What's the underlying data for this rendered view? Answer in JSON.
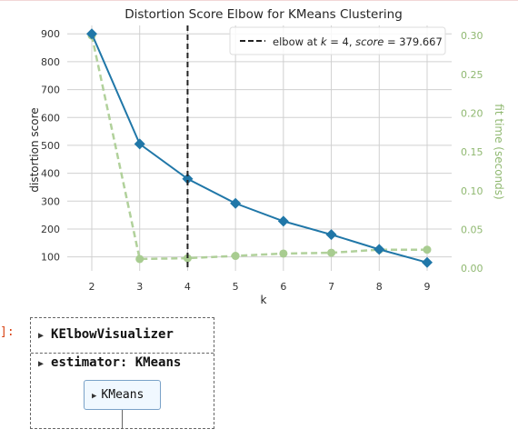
{
  "chart_data": {
    "type": "line",
    "title": "Distortion Score Elbow for KMeans Clustering",
    "xlabel": "k",
    "ylabel": "distortion score",
    "y2label": "fit time (seconds)",
    "x": [
      2,
      3,
      4,
      5,
      6,
      7,
      8,
      9
    ],
    "xticks": [
      "2",
      "3",
      "4",
      "5",
      "6",
      "7",
      "8",
      "9"
    ],
    "ylim": [
      50,
      930
    ],
    "yticks": [
      "100",
      "200",
      "300",
      "400",
      "500",
      "600",
      "700",
      "800",
      "900"
    ],
    "y2lim": [
      -0.0033,
      0.313
    ],
    "y2ticks": [
      "0.00",
      "0.05",
      "0.10",
      "0.15",
      "0.20",
      "0.25",
      "0.30"
    ],
    "grid": true,
    "series": [
      {
        "axis": "left",
        "values": [
          900,
          505,
          380,
          292,
          228,
          180,
          127,
          80
        ],
        "color": "#2077a8",
        "marker": "diamond"
      },
      {
        "axis": "right",
        "values": [
          0.3,
          0.012,
          0.013,
          0.016,
          0.019,
          0.02,
          0.024,
          0.024
        ],
        "color": "#a8cc90",
        "marker": "circle",
        "dashed": true
      }
    ],
    "elbow": {
      "k": 4,
      "label_pre": "elbow at ",
      "label_k": "k",
      "label_mid": " = 4, ",
      "label_score": "score",
      "label_post": " = 379.667"
    },
    "legend_position": "top-right",
    "colors": {
      "y2_text": "#8fb870",
      "elbow_line": "#222222",
      "grid": "#d0d0d0"
    }
  },
  "cell": {
    "prompt": "]:",
    "visualizer_label": "KElbowVisualizer",
    "estimator_label": "estimator: KMeans",
    "kmeans_label": "KMeans",
    "expand_icon": "triangle-right-icon"
  }
}
